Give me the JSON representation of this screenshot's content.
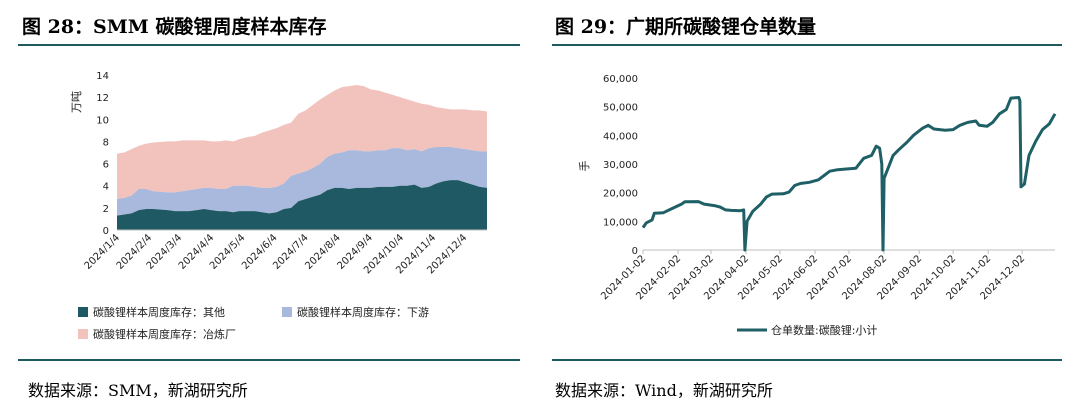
{
  "left": {
    "title": "图 28：SMM 碳酸锂周度样本库存",
    "source": "数据来源：SMM，新湖研究所"
  },
  "right": {
    "title": "图 29：广期所碳酸锂仓单数量",
    "source": "数据来源：Wind，新湖研究所"
  },
  "colors": {
    "rule": "#1f5a5e",
    "smelter": "#f2c3bd",
    "downstream": "#a9b9dd",
    "other": "#1f5a64",
    "line": "#1f5f66"
  },
  "chart_data": [
    {
      "type": "area",
      "stacked": true,
      "ylabel": "万吨",
      "ylim": [
        0,
        14
      ],
      "yticks": [
        0,
        2,
        4,
        6,
        8,
        10,
        12,
        14
      ],
      "grid": false,
      "legend_position": "bottom",
      "xtick_labels": [
        "2024/1/4",
        "2024/2/4",
        "2024/3/4",
        "2024/4/4",
        "2024/5/4",
        "2024/6/4",
        "2024/7/4",
        "2024/8/4",
        "2024/9/4",
        "2024/10/4",
        "2024/11/4",
        "2024/12/4"
      ],
      "x": [
        "2024/1/4",
        "2024/1/11",
        "2024/1/18",
        "2024/1/25",
        "2024/2/1",
        "2024/2/8",
        "2024/2/22",
        "2024/2/29",
        "2024/3/7",
        "2024/3/14",
        "2024/3/21",
        "2024/3/28",
        "2024/4/4",
        "2024/4/11",
        "2024/4/18",
        "2024/4/25",
        "2024/5/1",
        "2024/5/9",
        "2024/5/16",
        "2024/5/23",
        "2024/5/30",
        "2024/6/6",
        "2024/6/13",
        "2024/6/20",
        "2024/6/27",
        "2024/7/4",
        "2024/7/11",
        "2024/7/18",
        "2024/7/25",
        "2024/8/1",
        "2024/8/8",
        "2024/8/15",
        "2024/8/22",
        "2024/8/29",
        "2024/9/5",
        "2024/9/12",
        "2024/9/19",
        "2024/9/26",
        "2024/10/3",
        "2024/10/10",
        "2024/10/17",
        "2024/10/24",
        "2024/10/31",
        "2024/11/7",
        "2024/11/14",
        "2024/11/21",
        "2024/11/28",
        "2024/12/5",
        "2024/12/12",
        "2024/12/19",
        "2024/12/26"
      ],
      "series": [
        {
          "name": "碳酸锂样本周度库存：其他",
          "values": [
            1.3,
            1.4,
            1.5,
            1.8,
            1.9,
            1.9,
            1.8,
            1.7,
            1.7,
            1.7,
            1.8,
            1.9,
            1.8,
            1.7,
            1.7,
            1.6,
            1.7,
            1.7,
            1.7,
            1.6,
            1.5,
            1.6,
            1.9,
            2.0,
            2.6,
            2.8,
            3.0,
            3.2,
            3.6,
            3.8,
            3.8,
            3.7,
            3.8,
            3.8,
            3.8,
            3.9,
            3.9,
            3.9,
            4.0,
            4.0,
            4.1,
            3.8,
            3.9,
            4.2,
            4.4,
            4.5,
            4.5,
            4.3,
            4.1,
            3.9,
            3.8
          ]
        },
        {
          "name": "碳酸锂样本周度库存：下游",
          "values": [
            1.5,
            1.5,
            1.6,
            1.9,
            1.8,
            1.6,
            1.6,
            1.7,
            1.8,
            1.9,
            1.9,
            1.9,
            2.0,
            2.0,
            2.0,
            2.4,
            2.3,
            2.3,
            2.2,
            2.2,
            2.3,
            2.3,
            2.3,
            2.9,
            2.5,
            2.5,
            2.6,
            2.8,
            3.0,
            3.1,
            3.2,
            3.5,
            3.4,
            3.3,
            3.3,
            3.3,
            3.3,
            3.5,
            3.4,
            3.2,
            3.2,
            3.3,
            3.5,
            3.3,
            3.1,
            3.0,
            2.9,
            3.0,
            3.1,
            3.2,
            3.3
          ]
        },
        {
          "name": "碳酸锂样本周度库存：冶炼厂",
          "values": [
            4.1,
            4.1,
            4.2,
            3.9,
            4.1,
            4.4,
            4.6,
            4.6,
            4.6,
            4.5,
            4.4,
            4.3,
            4.2,
            4.3,
            4.4,
            4.0,
            4.2,
            4.4,
            4.6,
            5.0,
            5.2,
            5.3,
            5.3,
            4.8,
            5.4,
            5.5,
            5.7,
            5.8,
            5.6,
            5.7,
            5.9,
            5.8,
            5.9,
            5.9,
            5.6,
            5.4,
            5.2,
            4.8,
            4.6,
            4.6,
            4.3,
            4.3,
            3.9,
            3.6,
            3.5,
            3.4,
            3.5,
            3.6,
            3.6,
            3.7,
            3.6
          ]
        }
      ]
    },
    {
      "type": "line",
      "ylabel": "手",
      "ylim": [
        0,
        60000
      ],
      "yticks": [
        0,
        10000,
        20000,
        30000,
        40000,
        50000,
        60000
      ],
      "ytick_labels": [
        "0",
        "10,000",
        "20,000",
        "30,000",
        "40,000",
        "50,000",
        "60,000"
      ],
      "grid": false,
      "legend_position": "bottom",
      "xtick_labels": [
        "2024-01-02",
        "2024-02-02",
        "2024-03-02",
        "2024-04-02",
        "2024-05-02",
        "2024-06-02",
        "2024-07-02",
        "2024-08-02",
        "2024-09-02",
        "2024-10-02",
        "2024-11-02",
        "2024-12-02"
      ],
      "series": [
        {
          "name": "仓单数量:碳酸锂:小计",
          "points": [
            [
              "2024-01-02",
              7800
            ],
            [
              "2024-01-05",
              9500
            ],
            [
              "2024-01-10",
              10500
            ],
            [
              "2024-01-12",
              12800
            ],
            [
              "2024-01-20",
              13000
            ],
            [
              "2024-01-28",
              14500
            ],
            [
              "2024-02-05",
              16000
            ],
            [
              "2024-02-08",
              16800
            ],
            [
              "2024-02-20",
              16900
            ],
            [
              "2024-02-25",
              16000
            ],
            [
              "2024-03-05",
              15500
            ],
            [
              "2024-03-10",
              15000
            ],
            [
              "2024-03-15",
              14000
            ],
            [
              "2024-03-20",
              13800
            ],
            [
              "2024-03-28",
              13700
            ],
            [
              "2024-03-31",
              14000
            ],
            [
              "2024-04-01",
              0
            ],
            [
              "2024-04-03",
              10000
            ],
            [
              "2024-04-08",
              13500
            ],
            [
              "2024-04-15",
              16000
            ],
            [
              "2024-04-20",
              18500
            ],
            [
              "2024-04-25",
              19500
            ],
            [
              "2024-05-05",
              19600
            ],
            [
              "2024-05-10",
              20200
            ],
            [
              "2024-05-15",
              22500
            ],
            [
              "2024-05-20",
              23200
            ],
            [
              "2024-05-28",
              23600
            ],
            [
              "2024-06-05",
              24500
            ],
            [
              "2024-06-10",
              26000
            ],
            [
              "2024-06-15",
              27500
            ],
            [
              "2024-06-22",
              28000
            ],
            [
              "2024-07-01",
              28300
            ],
            [
              "2024-07-08",
              28500
            ],
            [
              "2024-07-15",
              32000
            ],
            [
              "2024-07-22",
              33000
            ],
            [
              "2024-07-26",
              36200
            ],
            [
              "2024-07-29",
              35500
            ],
            [
              "2024-07-31",
              30000
            ],
            [
              "2024-08-01",
              0
            ],
            [
              "2024-08-02",
              25000
            ],
            [
              "2024-08-05",
              28000
            ],
            [
              "2024-08-10",
              33000
            ],
            [
              "2024-08-15",
              35000
            ],
            [
              "2024-08-22",
              37500
            ],
            [
              "2024-08-28",
              40000
            ],
            [
              "2024-09-05",
              42500
            ],
            [
              "2024-09-10",
              43500
            ],
            [
              "2024-09-15",
              42200
            ],
            [
              "2024-09-25",
              41800
            ],
            [
              "2024-10-02",
              42000
            ],
            [
              "2024-10-08",
              43500
            ],
            [
              "2024-10-15",
              44500
            ],
            [
              "2024-10-22",
              45000
            ],
            [
              "2024-10-25",
              43500
            ],
            [
              "2024-11-01",
              43200
            ],
            [
              "2024-11-06",
              44500
            ],
            [
              "2024-11-12",
              47500
            ],
            [
              "2024-11-18",
              49000
            ],
            [
              "2024-11-22",
              53000
            ],
            [
              "2024-11-29",
              53200
            ],
            [
              "2024-11-30",
              52000
            ],
            [
              "2024-12-01",
              22000
            ],
            [
              "2024-12-04",
              23000
            ],
            [
              "2024-12-08",
              33000
            ],
            [
              "2024-12-14",
              38000
            ],
            [
              "2024-12-20",
              42000
            ],
            [
              "2024-12-26",
              44000
            ],
            [
              "2024-12-31",
              47500
            ]
          ]
        }
      ]
    }
  ]
}
